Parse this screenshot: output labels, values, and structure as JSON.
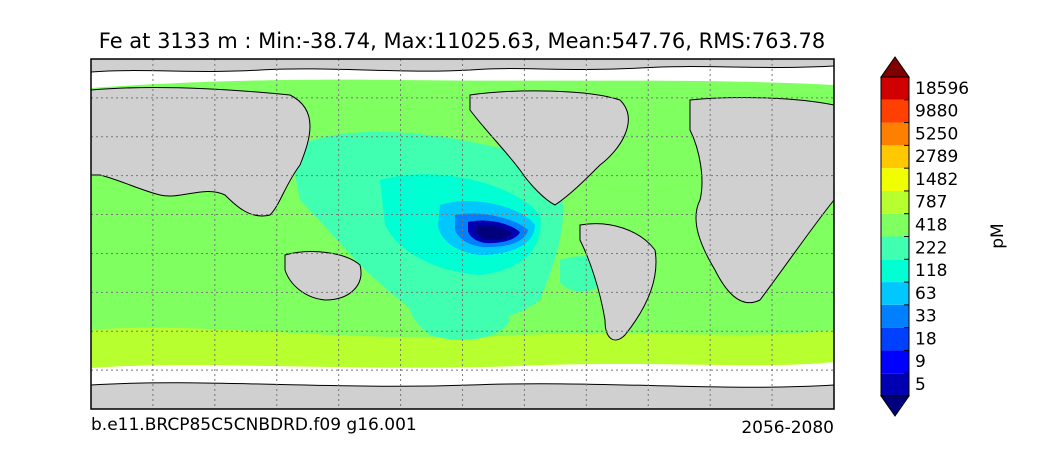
{
  "chart_data": {
    "type": "heatmap",
    "title": "Fe at 3133 m : Min:-38.74, Max:11025.63, Mean:547.76, RMS:763.78",
    "subtitle_left": "b.e11.BRCP85C5CNBDRD.f09 g16.001",
    "subtitle_right": "2056-2080",
    "colorbar": {
      "unit": "pM",
      "extend": "both",
      "levels": [
        5,
        9,
        18,
        33,
        63,
        118,
        222,
        418,
        787,
        1482,
        2789,
        5250,
        9880,
        18596
      ],
      "colors": [
        "#00007f",
        "#0000b2",
        "#0000ff",
        "#0040ff",
        "#0080ff",
        "#00c8ff",
        "#00ffd2",
        "#40ffb0",
        "#80ff60",
        "#b8ff30",
        "#f0ff00",
        "#ffc800",
        "#ff8000",
        "#ff4000",
        "#d00000",
        "#800000"
      ]
    },
    "map": {
      "projection": "equirectangular",
      "grid": true,
      "land_color": "#d0d0d0",
      "no_data_color": "#ffffff"
    }
  }
}
